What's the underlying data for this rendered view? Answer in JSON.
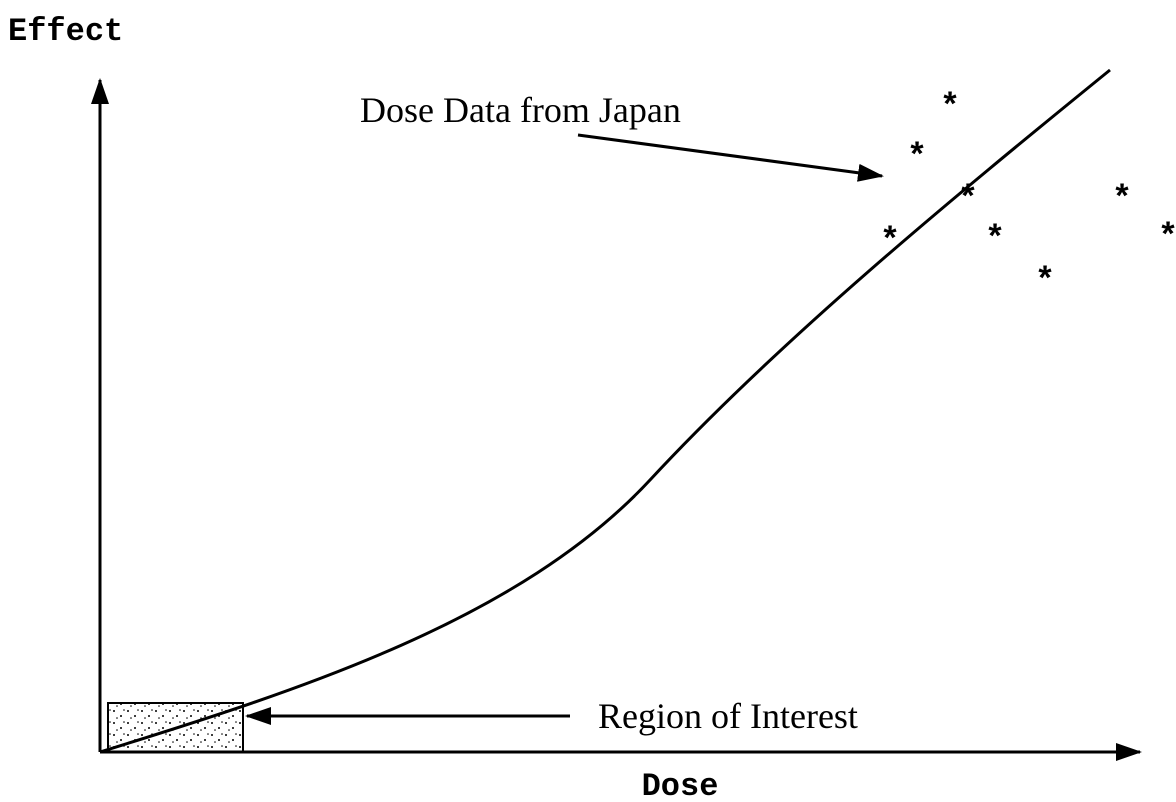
{
  "diagram": {
    "y_axis_label": "Effect",
    "x_axis_label": "Dose",
    "data_annotation": "Dose Data from Japan",
    "region_annotation": "Region of Interest"
  }
}
